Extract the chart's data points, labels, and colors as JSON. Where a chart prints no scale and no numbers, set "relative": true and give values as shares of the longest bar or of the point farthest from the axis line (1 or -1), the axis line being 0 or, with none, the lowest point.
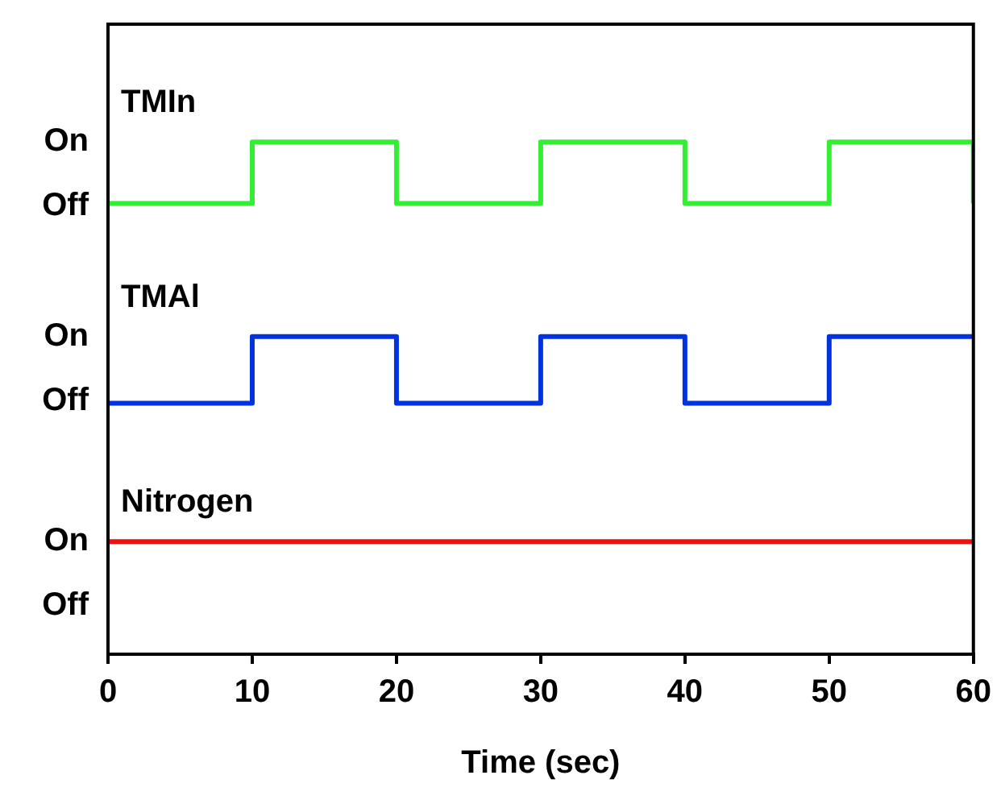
{
  "chart_data": {
    "type": "step",
    "xlabel": "Time (sec)",
    "x": [
      0,
      10,
      20,
      30,
      40,
      50,
      60
    ],
    "relative": true,
    "series": [
      {
        "name": "TMIn",
        "color": "#33ee33",
        "values": [
          0.88,
          1,
          0.88,
          1,
          0.88,
          1,
          0.88
        ]
      },
      {
        "name": "TMAl",
        "color": "#0033dd",
        "values": [
          0.49,
          0.62,
          0.49,
          0.62,
          0.49,
          0.62,
          0.62
        ]
      },
      {
        "name": "Nitrogen",
        "color": "#ee1111",
        "values": [
          0.22,
          0.22,
          0.22,
          0.22,
          0.22,
          0.22,
          0.22
        ]
      }
    ],
    "annotations": [
      "On",
      "Off",
      "On",
      "Off",
      "On",
      "Off"
    ],
    "xlim": [
      0,
      60
    ],
    "xticks": [
      0,
      10,
      20,
      30,
      40,
      50,
      60
    ],
    "grid": false,
    "legend": false,
    "marker": "none",
    "line_style": "solid"
  }
}
